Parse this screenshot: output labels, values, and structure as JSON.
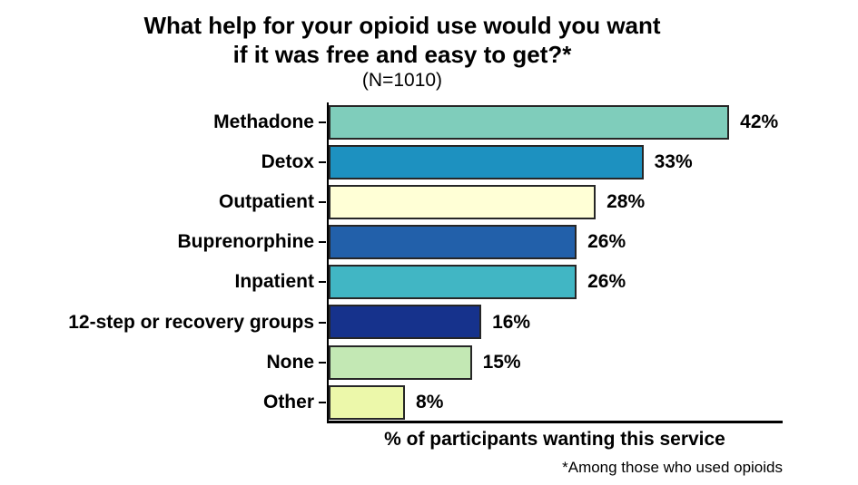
{
  "title": {
    "line1": "What help for your opioid use would you want",
    "line2": "if it was free and easy to get?*",
    "subtitle": "(N=1010)"
  },
  "chart_data": {
    "type": "bar",
    "orientation": "horizontal",
    "categories": [
      "Methadone",
      "Detox",
      "Outpatient",
      "Buprenorphine",
      "Inpatient",
      "12-step or recovery groups",
      "None",
      "Other"
    ],
    "values": [
      42,
      33,
      28,
      26,
      26,
      16,
      15,
      8
    ],
    "value_labels": [
      "42%",
      "33%",
      "28%",
      "26%",
      "26%",
      "16%",
      "15%",
      "8%"
    ],
    "bar_colors": [
      "#7fcdbb",
      "#1d91c0",
      "#ffffd6",
      "#2260aa",
      "#41b6c4",
      "#16328c",
      "#c3e8b4",
      "#ecf8aa"
    ],
    "bar_border_color": "#262626",
    "axis_color": "#000000",
    "xlabel": "% of participants wanting this service",
    "ylabel": "",
    "xlim": [
      0,
      47.6
    ],
    "grid": false,
    "legend": "none",
    "footnote": "*Among those who used opioids"
  }
}
